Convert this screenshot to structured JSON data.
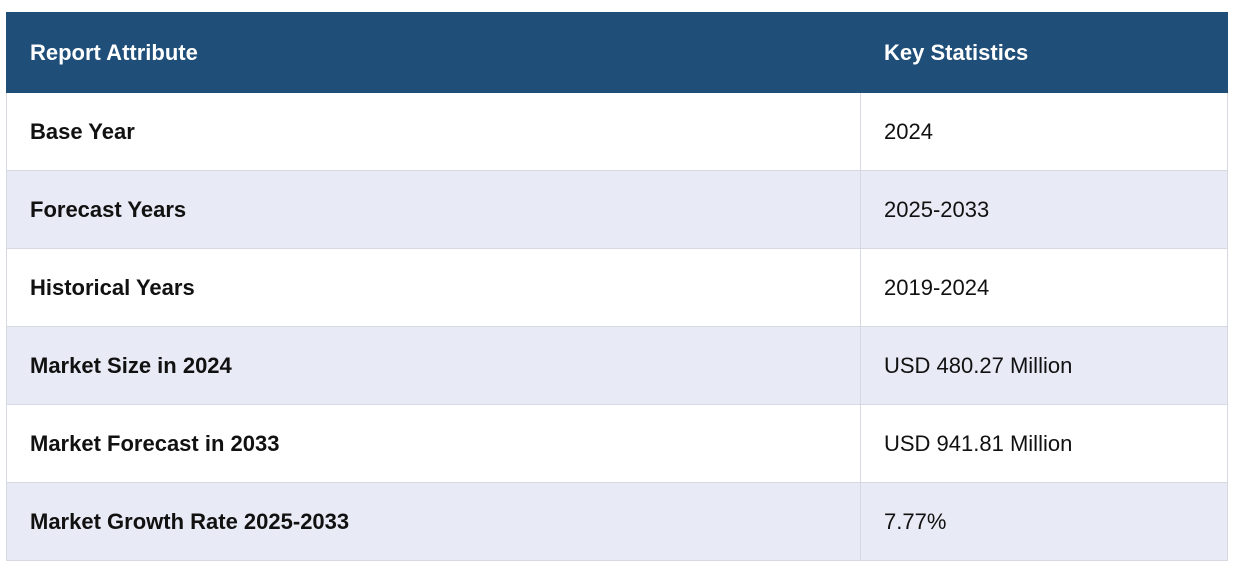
{
  "table": {
    "headers": [
      "Report Attribute",
      "Key Statistics"
    ],
    "rows": [
      {
        "attribute": "Base Year",
        "value": "2024"
      },
      {
        "attribute": "Forecast Years",
        "value": "2025-2033"
      },
      {
        "attribute": "Historical Years",
        "value": "2019-2024"
      },
      {
        "attribute": "Market Size in 2024",
        "value": "USD 480.27 Million"
      },
      {
        "attribute": "Market Forecast in 2033",
        "value": "USD 941.81 Million"
      },
      {
        "attribute": "Market Growth Rate 2025-2033",
        "value": "7.77%"
      }
    ]
  },
  "colors": {
    "header_bg": "#1f4e79",
    "header_text": "#ffffff",
    "row_alt_bg": "#e8eaf5",
    "row_bg": "#ffffff",
    "border": "#d6d9e2"
  }
}
